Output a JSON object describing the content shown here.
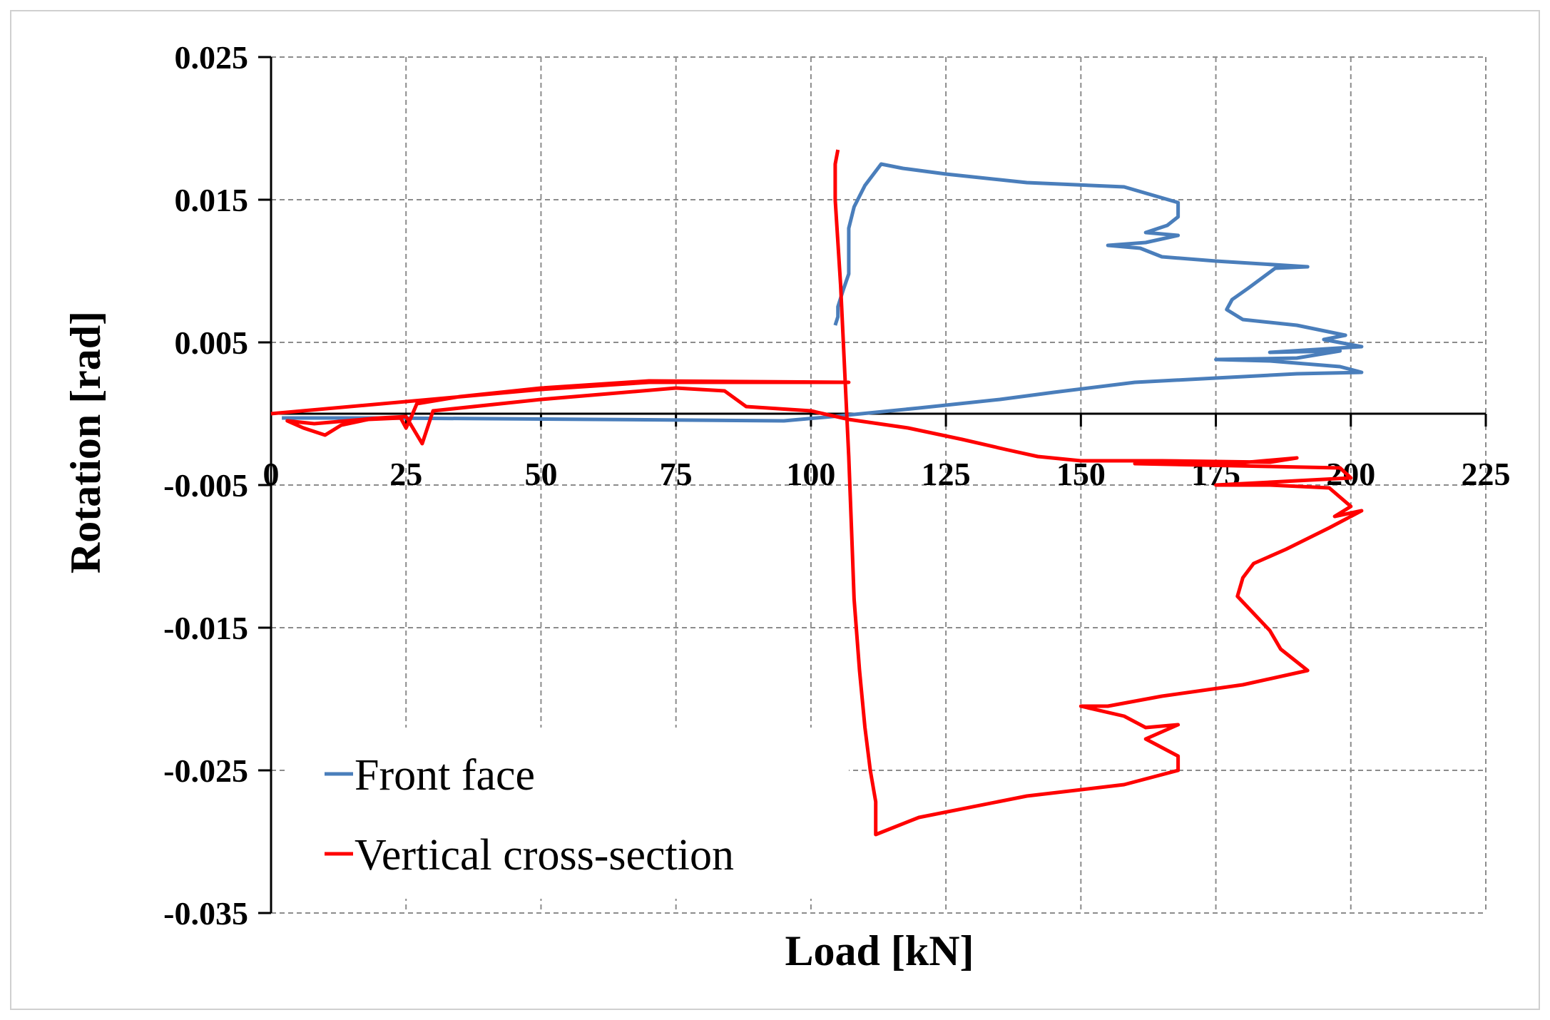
{
  "chart_data": {
    "type": "line",
    "title": "",
    "xlabel": "Load   [kN]",
    "ylabel": "Rotation   [rad]",
    "xlim": [
      0,
      225
    ],
    "ylim": [
      -0.035,
      0.025
    ],
    "xticks": [
      "0",
      "25",
      "50",
      "75",
      "100",
      "125",
      "150",
      "175",
      "200",
      "225"
    ],
    "yticks": [
      "0.025",
      "0.015",
      "0.005",
      "-0.005",
      "-0.015",
      "-0.025",
      "-0.035"
    ],
    "grid": true,
    "legend_position": "bottom-left",
    "series": [
      {
        "name": "Front face",
        "color": "#4a7ebb",
        "points": [
          [
            2,
            -0.0003
          ],
          [
            20,
            -0.0003
          ],
          [
            60,
            -0.0004
          ],
          [
            95,
            -0.0005
          ],
          [
            104,
            -0.0002
          ],
          [
            120,
            0.0004
          ],
          [
            135,
            0.001
          ],
          [
            145,
            0.0015
          ],
          [
            160,
            0.0022
          ],
          [
            175,
            0.0025
          ],
          [
            190,
            0.0028
          ],
          [
            202,
            0.0029
          ],
          [
            198,
            0.0033
          ],
          [
            185,
            0.0037
          ],
          [
            175,
            0.0038
          ],
          [
            190,
            0.0039
          ],
          [
            198,
            0.0044
          ],
          [
            185,
            0.0043
          ],
          [
            202,
            0.0047
          ],
          [
            195,
            0.0052
          ],
          [
            199,
            0.0055
          ],
          [
            190,
            0.0062
          ],
          [
            180,
            0.0066
          ],
          [
            177,
            0.0073
          ],
          [
            178,
            0.008
          ],
          [
            181,
            0.0088
          ],
          [
            186,
            0.0102
          ],
          [
            192,
            0.0103
          ],
          [
            175,
            0.0107
          ],
          [
            165,
            0.011
          ],
          [
            161,
            0.0116
          ],
          [
            155,
            0.0118
          ],
          [
            162,
            0.012
          ],
          [
            168,
            0.0125
          ],
          [
            162,
            0.0127
          ],
          [
            166,
            0.0132
          ],
          [
            168,
            0.0138
          ],
          [
            168,
            0.0148
          ],
          [
            158,
            0.0159
          ],
          [
            140,
            0.0162
          ],
          [
            125,
            0.0168
          ],
          [
            117,
            0.0172
          ],
          [
            113,
            0.0175
          ],
          [
            110,
            0.016
          ],
          [
            108,
            0.0145
          ],
          [
            107,
            0.013
          ],
          [
            107,
            0.0112
          ],
          [
            107,
            0.0098
          ],
          [
            106,
            0.0087
          ],
          [
            105,
            0.0075
          ],
          [
            105,
            0.0068
          ],
          [
            104.5,
            0.0062
          ]
        ]
      },
      {
        "name": "Vertical cross-section",
        "color": "#ff0000",
        "points": [
          [
            0,
            0.0
          ],
          [
            50,
            0.0017
          ],
          [
            70,
            0.0022
          ],
          [
            107,
            0.0022
          ],
          [
            70,
            0.0023
          ],
          [
            50,
            0.0018
          ],
          [
            35,
            0.0012
          ],
          [
            27,
            0.0007
          ],
          [
            26,
            -0.0002
          ],
          [
            25,
            -0.001
          ],
          [
            24,
            -0.0003
          ],
          [
            18,
            -0.0004
          ],
          [
            13,
            -0.0008
          ],
          [
            10,
            -0.0015
          ],
          [
            6,
            -0.001
          ],
          [
            3,
            -0.0005
          ],
          [
            8,
            -0.0007
          ],
          [
            14,
            -0.0005
          ],
          [
            20,
            -0.0003
          ],
          [
            25,
            -0.0002
          ],
          [
            28,
            -0.0021
          ],
          [
            30,
            0.0002
          ],
          [
            50,
            0.001
          ],
          [
            75,
            0.0018
          ],
          [
            84,
            0.0016
          ],
          [
            88,
            0.0005
          ],
          [
            100,
            0.0002
          ],
          [
            107,
            -0.0004
          ],
          [
            118,
            -0.001
          ],
          [
            128,
            -0.0018
          ],
          [
            136,
            -0.0025
          ],
          [
            142,
            -0.003
          ],
          [
            150,
            -0.0033
          ],
          [
            165,
            -0.0033
          ],
          [
            185,
            -0.0034
          ],
          [
            190,
            -0.0031
          ],
          [
            175,
            -0.0036
          ],
          [
            160,
            -0.0035
          ],
          [
            185,
            -0.0037
          ],
          [
            198,
            -0.0038
          ],
          [
            200,
            -0.0045
          ],
          [
            190,
            -0.0047
          ],
          [
            175,
            -0.005
          ],
          [
            185,
            -0.005
          ],
          [
            196,
            -0.0052
          ],
          [
            200,
            -0.0065
          ],
          [
            197,
            -0.0072
          ],
          [
            202,
            -0.0068
          ],
          [
            196,
            -0.008
          ],
          [
            188,
            -0.0095
          ],
          [
            182,
            -0.0105
          ],
          [
            180,
            -0.0115
          ],
          [
            179,
            -0.0128
          ],
          [
            182,
            -0.014
          ],
          [
            185,
            -0.0152
          ],
          [
            187,
            -0.0165
          ],
          [
            192,
            -0.018
          ],
          [
            180,
            -0.019
          ],
          [
            165,
            -0.0198
          ],
          [
            155,
            -0.0205
          ],
          [
            150,
            -0.0205
          ],
          [
            158,
            -0.0212
          ],
          [
            162,
            -0.022
          ],
          [
            168,
            -0.0218
          ],
          [
            162,
            -0.0228
          ],
          [
            168,
            -0.024
          ],
          [
            168,
            -0.025
          ],
          [
            158,
            -0.026
          ],
          [
            140,
            -0.0268
          ],
          [
            120,
            -0.0283
          ],
          [
            112,
            -0.0295
          ],
          [
            112,
            -0.0272
          ],
          [
            111,
            -0.025
          ],
          [
            110,
            -0.022
          ],
          [
            109,
            -0.018
          ],
          [
            108,
            -0.013
          ],
          [
            107.5,
            -0.008
          ],
          [
            107,
            -0.003
          ],
          [
            106.5,
            0.001
          ],
          [
            106,
            0.005
          ],
          [
            105.5,
            0.009
          ],
          [
            105,
            0.012
          ],
          [
            104.5,
            0.015
          ],
          [
            104.5,
            0.0175
          ],
          [
            105,
            0.0185
          ]
        ]
      }
    ]
  }
}
